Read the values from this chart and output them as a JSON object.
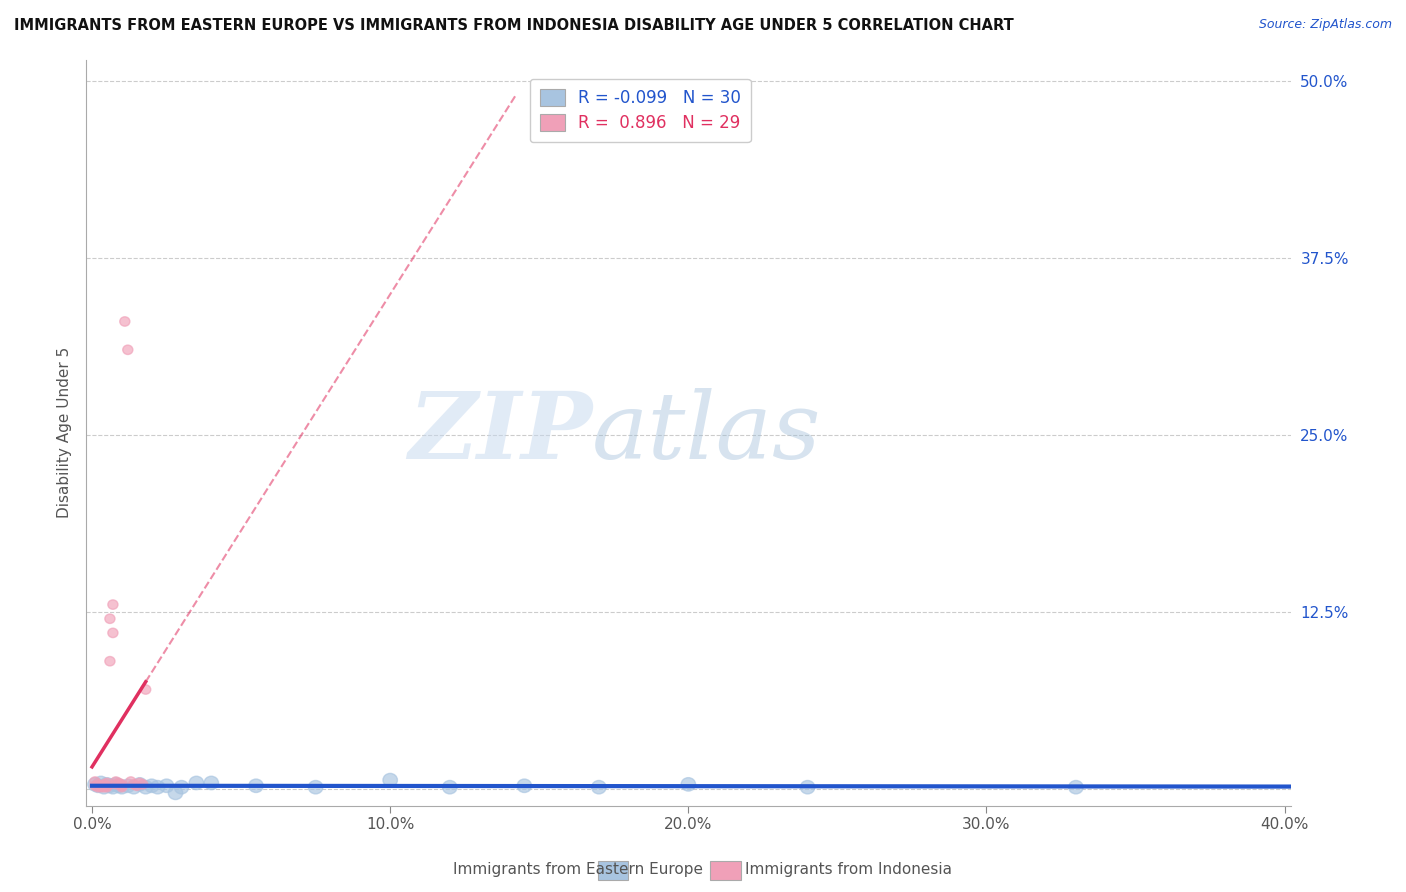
{
  "title": "IMMIGRANTS FROM EASTERN EUROPE VS IMMIGRANTS FROM INDONESIA DISABILITY AGE UNDER 5 CORRELATION CHART",
  "source_text": "Source: ZipAtlas.com",
  "ylabel": "Disability Age Under 5",
  "xlim": [
    -0.002,
    0.402
  ],
  "ylim": [
    -0.012,
    0.515
  ],
  "xticks": [
    0.0,
    0.1,
    0.2,
    0.3,
    0.4
  ],
  "xtick_labels": [
    "0.0%",
    "10.0%",
    "20.0%",
    "30.0%",
    "40.0%"
  ],
  "yticks": [
    0.0,
    0.125,
    0.25,
    0.375,
    0.5
  ],
  "ytick_labels": [
    "",
    "12.5%",
    "25.0%",
    "37.5%",
    "50.0%"
  ],
  "grid_color": "#cccccc",
  "background_color": "#ffffff",
  "blue_color": "#a8c4e0",
  "pink_color": "#f0a0b8",
  "blue_line_color": "#2255cc",
  "pink_line_color": "#e03060",
  "blue_R": -0.099,
  "blue_N": 30,
  "pink_R": 0.896,
  "pink_N": 29,
  "legend_label_blue": "Immigrants from Eastern Europe",
  "legend_label_pink": "Immigrants from Indonesia",
  "watermark_zip": "ZIP",
  "watermark_atlas": "atlas",
  "blue_scatter_x": [
    0.001,
    0.002,
    0.003,
    0.004,
    0.005,
    0.006,
    0.007,
    0.008,
    0.009,
    0.01,
    0.012,
    0.014,
    0.016,
    0.018,
    0.02,
    0.022,
    0.025,
    0.028,
    0.03,
    0.035,
    0.04,
    0.055,
    0.075,
    0.1,
    0.12,
    0.145,
    0.17,
    0.2,
    0.24,
    0.33
  ],
  "blue_scatter_y": [
    0.003,
    0.002,
    0.004,
    0.001,
    0.003,
    0.002,
    0.001,
    0.003,
    0.002,
    0.001,
    0.002,
    0.001,
    0.003,
    0.001,
    0.002,
    0.001,
    0.002,
    -0.003,
    0.001,
    0.004,
    0.004,
    0.002,
    0.001,
    0.006,
    0.001,
    0.002,
    0.001,
    0.003,
    0.001,
    0.001
  ],
  "pink_scatter_x": [
    0.001,
    0.001,
    0.002,
    0.002,
    0.003,
    0.003,
    0.004,
    0.004,
    0.005,
    0.005,
    0.005,
    0.006,
    0.006,
    0.007,
    0.007,
    0.008,
    0.008,
    0.009,
    0.01,
    0.01,
    0.01,
    0.011,
    0.012,
    0.013,
    0.014,
    0.015,
    0.016,
    0.017,
    0.018
  ],
  "pink_scatter_y": [
    0.005,
    0.002,
    0.003,
    0.001,
    0.002,
    0.001,
    0.003,
    0.001,
    0.004,
    0.002,
    0.001,
    0.12,
    0.09,
    0.13,
    0.11,
    0.005,
    0.003,
    0.004,
    0.002,
    0.003,
    0.001,
    0.33,
    0.31,
    0.005,
    0.003,
    0.002,
    0.004,
    0.003,
    0.07
  ]
}
